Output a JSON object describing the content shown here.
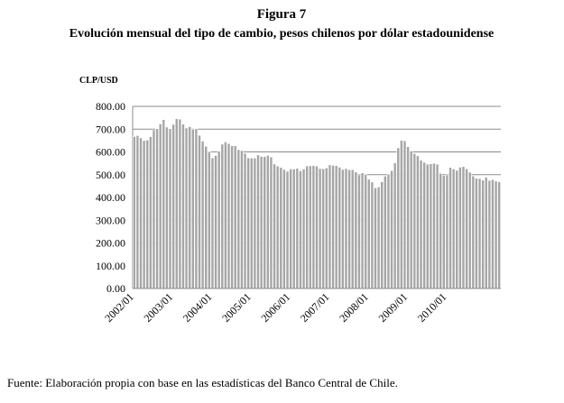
{
  "chart_data": {
    "type": "bar",
    "title": "Figura 7",
    "subtitle": "Evolución mensual del tipo de cambio, pesos chilenos por dólar estadounidense",
    "y_label": "CLP/USD",
    "source": "Fuente: Elaboración propia con base en las estadísticas del Banco Central de Chile.",
    "color": "#a6a6a6",
    "grid": true,
    "ylim": [
      0,
      800
    ],
    "yticks": [
      {
        "value": 0,
        "label": "0.00"
      },
      {
        "value": 100,
        "label": "100.00"
      },
      {
        "value": 200,
        "label": "200.00"
      },
      {
        "value": 300,
        "label": "300.00"
      },
      {
        "value": 400,
        "label": "400.00"
      },
      {
        "value": 500,
        "label": "500.00"
      },
      {
        "value": 600,
        "label": "600.00"
      },
      {
        "value": 700,
        "label": "700.00"
      },
      {
        "value": 800,
        "label": "800.00"
      }
    ],
    "categories": [
      "2002/01",
      null,
      null,
      null,
      null,
      null,
      null,
      null,
      null,
      null,
      null,
      null,
      "2003/01",
      null,
      null,
      null,
      null,
      null,
      null,
      null,
      null,
      null,
      null,
      null,
      "2004/01",
      null,
      null,
      null,
      null,
      null,
      null,
      null,
      null,
      null,
      null,
      null,
      "2005/01",
      null,
      null,
      null,
      null,
      null,
      null,
      null,
      null,
      null,
      null,
      null,
      "2006/01",
      null,
      null,
      null,
      null,
      null,
      null,
      null,
      null,
      null,
      null,
      null,
      "2007/01",
      null,
      null,
      null,
      null,
      null,
      null,
      null,
      null,
      null,
      null,
      null,
      "2008/01",
      null,
      null,
      null,
      null,
      null,
      null,
      null,
      null,
      null,
      null,
      null,
      "2009/01",
      null,
      null,
      null,
      null,
      null,
      null,
      null,
      null,
      null,
      null,
      null,
      "2010/01",
      null,
      null,
      null,
      null,
      null,
      null,
      null,
      null,
      null,
      null,
      null,
      null,
      null,
      null,
      null,
      null
    ],
    "values": [
      668,
      672,
      662,
      650,
      652,
      667,
      697,
      702,
      723,
      742,
      709,
      702,
      721,
      746,
      744,
      722,
      705,
      711,
      700,
      702,
      673,
      647,
      625,
      601,
      574,
      584,
      603,
      634,
      644,
      637,
      627,
      627,
      610,
      606,
      594,
      574,
      573,
      573,
      587,
      580,
      580,
      585,
      578,
      547,
      538,
      532,
      523,
      515,
      525,
      525,
      528,
      517,
      525,
      538,
      539,
      540,
      538,
      527,
      526,
      530,
      543,
      541,
      540,
      533,
      523,
      527,
      522,
      522,
      512,
      499,
      508,
      500,
      480,
      468,
      442,
      446,
      469,
      494,
      502,
      518,
      552,
      618,
      651,
      649,
      623,
      604,
      593,
      583,
      564,
      554,
      546,
      548,
      550,
      546,
      506,
      497,
      499,
      532,
      525,
      519,
      533,
      536,
      526,
      511,
      494,
      484,
      483,
      476,
      489,
      475,
      479,
      472,
      469
    ]
  }
}
